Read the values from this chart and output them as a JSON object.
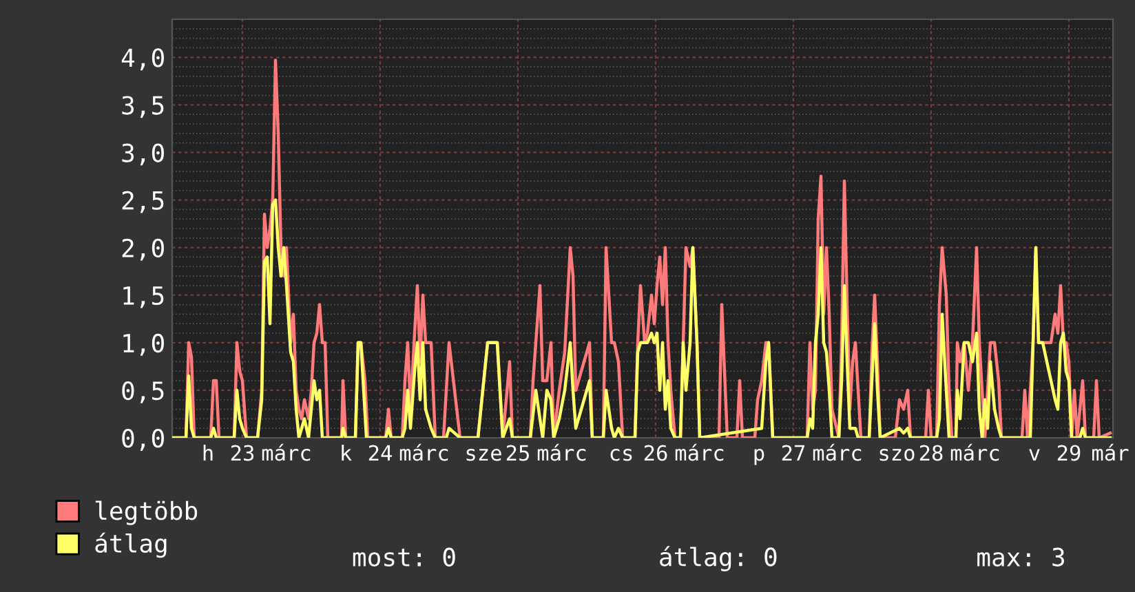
{
  "chart_data": {
    "type": "line",
    "xlim": [
      22.49,
      29.32
    ],
    "xticks": [
      {
        "value": 22.75,
        "label": "h"
      },
      23,
      {
        "value": 23.32,
        "label": "márc"
      },
      {
        "value": 23.75,
        "label": "k"
      },
      24,
      {
        "value": 24.32,
        "label": "márc"
      },
      {
        "value": 24.75,
        "label": "sze"
      },
      25,
      {
        "value": 25.32,
        "label": "márc"
      },
      {
        "value": 25.75,
        "label": "cs"
      },
      26,
      {
        "value": 26.32,
        "label": "márc"
      },
      {
        "value": 26.75,
        "label": "p"
      },
      27,
      {
        "value": 27.32,
        "label": "márc"
      },
      {
        "value": 27.75,
        "label": "szo"
      },
      28,
      {
        "value": 28.32,
        "label": "márc"
      },
      {
        "value": 28.75,
        "label": "v"
      },
      29,
      {
        "value": 29.3,
        "label": "már"
      }
    ],
    "ylim": [
      0,
      4.4
    ],
    "yticks": [
      {
        "value": 0,
        "label": "0,0"
      },
      {
        "value": 0.5,
        "label": "0,5"
      },
      {
        "value": 1,
        "label": "1,0"
      },
      {
        "value": 1.5,
        "label": "1,5"
      },
      {
        "value": 2,
        "label": "2,0"
      },
      {
        "value": 2.5,
        "label": "2,5"
      },
      {
        "value": 3,
        "label": "3,0"
      },
      {
        "value": 3.5,
        "label": "3,5"
      },
      {
        "value": 4,
        "label": "4,0"
      }
    ],
    "grid": true,
    "legend": "bottom left",
    "marker": "none",
    "line_style": "solid",
    "annotations": [
      "most: 0",
      "átlag: 0",
      "max: 3"
    ],
    "series": [
      {
        "name": "legtöbb",
        "color": "#ff7b7b",
        "x": [
          22.49,
          22.59,
          22.61,
          22.63,
          22.65,
          22.77,
          22.79,
          22.81,
          22.83,
          22.94,
          22.96,
          22.98,
          23.0,
          23.03,
          23.11,
          23.14,
          23.16,
          23.18,
          23.2,
          23.22,
          23.24,
          23.26,
          23.28,
          23.3,
          23.32,
          23.35,
          23.37,
          23.39,
          23.41,
          23.43,
          23.45,
          23.48,
          23.5,
          23.52,
          23.54,
          23.56,
          23.58,
          23.6,
          23.62,
          23.72,
          23.73,
          23.75,
          23.82,
          23.84,
          23.86,
          23.89,
          23.91,
          24.04,
          24.06,
          24.08,
          24.16,
          24.18,
          24.2,
          24.22,
          24.25,
          24.27,
          24.29,
          24.31,
          24.33,
          24.35,
          24.37,
          24.4,
          24.46,
          24.48,
          24.5,
          24.58,
          24.68,
          24.71,
          24.78,
          24.85,
          24.89,
          24.94,
          24.96,
          25.09,
          25.11,
          25.13,
          25.16,
          25.18,
          25.21,
          25.24,
          25.26,
          25.3,
          25.34,
          25.38,
          25.4,
          25.42,
          25.44,
          25.52,
          25.54,
          25.62,
          25.64,
          25.68,
          25.7,
          25.73,
          25.76,
          25.85,
          25.87,
          25.89,
          25.92,
          25.94,
          25.97,
          25.99,
          26.01,
          26.03,
          26.05,
          26.07,
          26.09,
          26.11,
          26.14,
          26.18,
          26.2,
          26.22,
          26.25,
          26.27,
          26.3,
          26.32,
          26.46,
          26.48,
          26.5,
          26.52,
          26.59,
          26.61,
          26.63,
          26.72,
          26.74,
          26.77,
          26.8,
          26.82,
          26.85,
          27.1,
          27.12,
          27.14,
          27.16,
          27.18,
          27.2,
          27.22,
          27.24,
          27.26,
          27.28,
          27.33,
          27.35,
          27.37,
          27.39,
          27.41,
          27.43,
          27.45,
          27.47,
          27.49,
          27.55,
          27.57,
          27.59,
          27.61,
          27.63,
          27.74,
          27.77,
          27.8,
          27.83,
          27.85,
          27.96,
          27.98,
          28.0,
          28.04,
          28.06,
          28.08,
          28.11,
          28.13,
          28.15,
          28.18,
          28.19,
          28.21,
          28.24,
          28.27,
          28.3,
          28.33,
          28.35,
          28.37,
          28.39,
          28.43,
          28.46,
          28.49,
          28.51,
          28.66,
          28.68,
          28.7,
          28.74,
          28.76,
          28.78,
          28.81,
          28.84,
          28.87,
          28.9,
          28.92,
          28.94,
          28.96,
          28.98,
          29.0,
          29.02,
          29.04,
          29.06,
          29.1,
          29.12,
          29.18,
          29.2,
          29.22,
          29.3
        ],
        "values": [
          0,
          0,
          1.0,
          0.85,
          0,
          0,
          0.6,
          0.6,
          0,
          0,
          1.0,
          0.7,
          0.6,
          0,
          0,
          0.5,
          2.35,
          2.0,
          2.2,
          2.5,
          3.97,
          3.2,
          2.0,
          1.7,
          2.0,
          1.0,
          1.3,
          0.5,
          0.3,
          0.2,
          0.4,
          0.2,
          0.5,
          1.0,
          1.1,
          1.4,
          1.0,
          1.0,
          0,
          0,
          0.6,
          0,
          0,
          1.0,
          1.0,
          0.6,
          0,
          0,
          0.3,
          0,
          0,
          0.6,
          1.0,
          0.3,
          1.1,
          1.6,
          0.8,
          1.5,
          1.0,
          1.0,
          1.0,
          0,
          0,
          0.5,
          1.0,
          0,
          0,
          0,
          1.0,
          1.0,
          0,
          0.8,
          0,
          0,
          0.6,
          1.0,
          1.6,
          0.6,
          0.6,
          1.0,
          0,
          0.5,
          0.9,
          2.0,
          1.7,
          0.5,
          0.6,
          1.0,
          0,
          0,
          2.0,
          1.0,
          1.0,
          0.8,
          0,
          0,
          1.0,
          1.6,
          1.0,
          1.1,
          1.5,
          1.2,
          1.6,
          1.9,
          1.4,
          2.0,
          1.0,
          0.5,
          0,
          0,
          1.0,
          2.0,
          1.8,
          2.0,
          1.0,
          0,
          0,
          1.4,
          0.7,
          0,
          0,
          0.6,
          0,
          0,
          0.4,
          0.6,
          1.0,
          1.0,
          0,
          0,
          1.0,
          0.3,
          0.5,
          2.3,
          2.75,
          1.3,
          2.0,
          1.3,
          0.3,
          0,
          1.0,
          2.7,
          1.4,
          0.3,
          0.8,
          1.0,
          0.5,
          0,
          0,
          0.9,
          1.5,
          0.8,
          0,
          0,
          0.4,
          0.3,
          0.5,
          0,
          0,
          0.5,
          0,
          0,
          1.4,
          2.0,
          1.5,
          0.5,
          0,
          0,
          1.0,
          0.8,
          1.0,
          0.5,
          1.0,
          2.0,
          1.0,
          0.5,
          0,
          1.0,
          1.0,
          0.6,
          0,
          0,
          0.5,
          0,
          1.0,
          2.0,
          1.0,
          1.0,
          1.0,
          1.0,
          1.3,
          1.1,
          1.6,
          1.0,
          1.0,
          0.8,
          0,
          0.5,
          0,
          0.6,
          0,
          0,
          0.6,
          0,
          0.05
        ]
      },
      {
        "name": "átlag",
        "color": "#ffff66",
        "x": [
          22.49,
          22.59,
          22.61,
          22.63,
          22.65,
          22.77,
          22.79,
          22.81,
          22.94,
          22.96,
          22.98,
          23.0,
          23.03,
          23.11,
          23.14,
          23.16,
          23.18,
          23.2,
          23.22,
          23.24,
          23.26,
          23.28,
          23.3,
          23.32,
          23.35,
          23.37,
          23.39,
          23.41,
          23.45,
          23.48,
          23.5,
          23.52,
          23.54,
          23.56,
          23.58,
          23.72,
          23.73,
          23.75,
          23.82,
          23.84,
          23.86,
          23.88,
          23.9,
          24.04,
          24.06,
          24.08,
          24.16,
          24.18,
          24.2,
          24.22,
          24.25,
          24.27,
          24.29,
          24.31,
          24.33,
          24.35,
          24.37,
          24.4,
          24.48,
          24.5,
          24.58,
          24.68,
          24.71,
          24.78,
          24.85,
          24.89,
          24.94,
          24.96,
          25.09,
          25.13,
          25.16,
          25.18,
          25.21,
          25.24,
          25.26,
          25.3,
          25.34,
          25.38,
          25.4,
          25.42,
          25.52,
          25.54,
          25.62,
          25.64,
          25.68,
          25.7,
          25.73,
          25.76,
          25.85,
          25.87,
          25.89,
          25.92,
          25.94,
          25.97,
          25.99,
          26.01,
          26.03,
          26.05,
          26.07,
          26.09,
          26.11,
          26.14,
          26.18,
          26.2,
          26.22,
          26.25,
          26.27,
          26.3,
          26.32,
          26.77,
          26.8,
          26.82,
          26.85,
          27.1,
          27.12,
          27.14,
          27.16,
          27.18,
          27.2,
          27.22,
          27.24,
          27.26,
          27.28,
          27.33,
          27.35,
          27.37,
          27.39,
          27.41,
          27.45,
          27.47,
          27.55,
          27.57,
          27.59,
          27.61,
          27.63,
          27.77,
          27.8,
          27.83,
          27.85,
          28.04,
          28.06,
          28.08,
          28.11,
          28.13,
          28.18,
          28.19,
          28.21,
          28.24,
          28.27,
          28.3,
          28.33,
          28.35,
          28.37,
          28.39,
          28.41,
          28.43,
          28.46,
          28.49,
          28.51,
          28.72,
          28.74,
          28.76,
          28.78,
          28.81,
          28.84,
          28.87,
          28.9,
          28.92,
          28.94,
          28.96,
          28.98,
          29.0,
          29.02,
          29.08,
          29.1,
          29.12,
          29.3
        ],
        "values": [
          0,
          0,
          0.65,
          0.1,
          0,
          0,
          0.1,
          0,
          0,
          0.5,
          0.2,
          0.1,
          0,
          0,
          0.4,
          1.85,
          1.9,
          1.2,
          2.45,
          2.5,
          2.0,
          1.7,
          2.0,
          1.6,
          0.9,
          0.8,
          0.3,
          0,
          0.2,
          0,
          0.3,
          0.6,
          0.4,
          0.5,
          0,
          0,
          0.1,
          0,
          0,
          1.0,
          1.0,
          0.5,
          0,
          0,
          0.1,
          0,
          0,
          0.1,
          0.5,
          0.1,
          0.7,
          1.0,
          0.4,
          1.0,
          0.3,
          0.2,
          0.1,
          0,
          0,
          0.1,
          0,
          0,
          0,
          1.0,
          1.0,
          0,
          0.2,
          0,
          0,
          0.5,
          0.2,
          0,
          0.5,
          0.4,
          0,
          0.2,
          0.5,
          1.0,
          0.5,
          0.1,
          0.6,
          0,
          0,
          0.5,
          0.1,
          0,
          0.1,
          0,
          0,
          0.9,
          1.0,
          1.0,
          1.0,
          1.1,
          1.0,
          1.1,
          0.5,
          1.0,
          0.3,
          0.6,
          0.1,
          0,
          0,
          1.0,
          0.5,
          1.0,
          2.0,
          1.0,
          0,
          0.1,
          0.8,
          1.0,
          0,
          0,
          0.2,
          0.1,
          1.0,
          1.3,
          2.0,
          1.0,
          0.9,
          0.5,
          0,
          0,
          0.6,
          1.6,
          0.8,
          0.1,
          0.1,
          0,
          0,
          0.6,
          1.2,
          0.5,
          0,
          0.1,
          0.05,
          0.1,
          0,
          0,
          0.2,
          1.3,
          0.5,
          0,
          0,
          0.5,
          0.2,
          1.0,
          1.0,
          0.8,
          1.1,
          0.3,
          0,
          0.4,
          0.1,
          0.8,
          0.3,
          0.1,
          0,
          0,
          1.0,
          2.0,
          1.0,
          1.0,
          0.8,
          0.6,
          0.4,
          0.3,
          1.0,
          1.1,
          0.7,
          0.6,
          0,
          0,
          0.1,
          0,
          0
        ]
      }
    ]
  }
}
